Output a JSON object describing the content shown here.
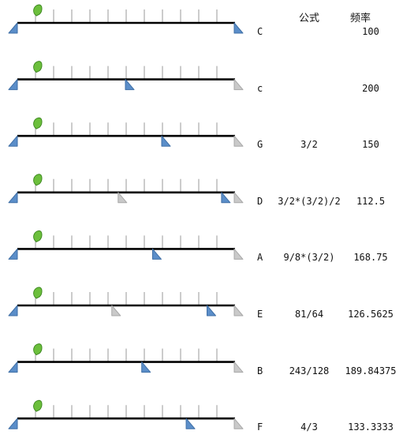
{
  "headers": {
    "formula": "公式",
    "frequency": "频率"
  },
  "colors": {
    "line": "#000000",
    "tick": "#9a9a9a",
    "bridge_blue": "#5b8ec9",
    "bridge_blue_edge": "#3f6fa6",
    "bridge_gray": "#c9c9c9",
    "bridge_gray_edge": "#a8a8a8",
    "leaf": "#6cbf3c",
    "leaf_edge": "#3f8a22"
  },
  "diagram": {
    "ticks_per_string": 12,
    "rows": [
      {
        "note": "C",
        "formula": "",
        "frequency": "100",
        "blue_positions": [
          12
        ],
        "gray_positions": []
      },
      {
        "note": "c",
        "formula": "",
        "frequency": "200",
        "blue_positions": [
          6
        ],
        "gray_positions": [
          12
        ]
      },
      {
        "note": "G",
        "formula": "3/2",
        "frequency": "150",
        "blue_positions": [
          8
        ],
        "gray_positions": [
          12
        ]
      },
      {
        "note": "D",
        "formula": "3/2*(3/2)/2",
        "frequency": "112.5",
        "blue_positions": [
          11.3
        ],
        "gray_positions": [
          5.6,
          12
        ]
      },
      {
        "note": "A",
        "formula": "9/8*(3/2)",
        "frequency": "168.75",
        "blue_positions": [
          7.5
        ],
        "gray_positions": [
          12
        ]
      },
      {
        "note": "E",
        "formula": "81/64",
        "frequency": "126.5625",
        "blue_positions": [
          10.5
        ],
        "gray_positions": [
          5.25,
          12
        ]
      },
      {
        "note": "B",
        "formula": "243/128",
        "frequency": "189.84375",
        "blue_positions": [
          6.9
        ],
        "gray_positions": [
          12
        ]
      },
      {
        "note": "F",
        "formula": "4/3",
        "frequency": "133.3333",
        "blue_positions": [
          9.35
        ],
        "gray_positions": [
          12
        ]
      }
    ]
  }
}
